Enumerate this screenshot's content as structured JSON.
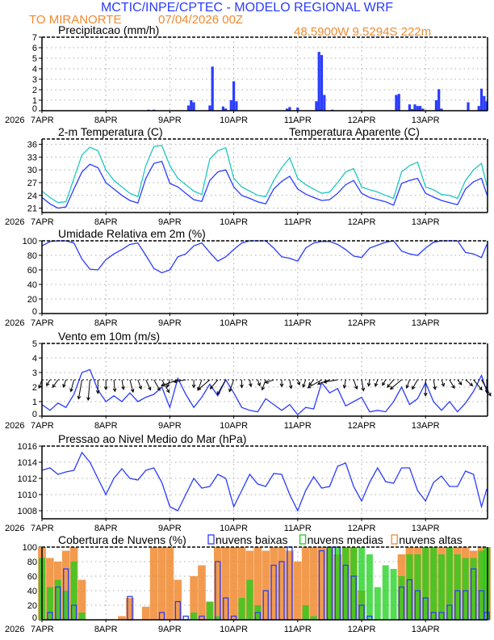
{
  "header": {
    "title": "MCTIC/INPE/CPTEC - MODELO REGIONAL WRF",
    "location": "TO MIRANORTE",
    "run": "07/04/2026 00Z",
    "coords": "48.5900W 9.5294S 222m"
  },
  "colors": {
    "title": "#2a3cff",
    "orange": "#f08a30",
    "blue": "#2a3cff",
    "cyan": "#20c8c0",
    "green": "#18d018"
  },
  "x_axis": {
    "labels": [
      "7APR",
      "8APR",
      "9APR",
      "10APR",
      "11APR",
      "12APR",
      "13APR"
    ],
    "year": "2026",
    "time_step_hours": 3,
    "last_hour": 167
  },
  "chart_data": [
    {
      "id": "precip",
      "type": "bar",
      "title": "Precipitacao (mm/h)",
      "ylim": [
        0,
        7
      ],
      "yticks": [
        0,
        1,
        2,
        3,
        4,
        5,
        6,
        7
      ],
      "grid": true,
      "bars_hour_value": [
        [
          40,
          0.1
        ],
        [
          42,
          0.1
        ],
        [
          55,
          0.5
        ],
        [
          56,
          1.0
        ],
        [
          57,
          0.8
        ],
        [
          63,
          0.5
        ],
        [
          64,
          4.2
        ],
        [
          68,
          0.4
        ],
        [
          69,
          0.2
        ],
        [
          71,
          1.0
        ],
        [
          72,
          2.8
        ],
        [
          73,
          0.9
        ],
        [
          92,
          0.2
        ],
        [
          93,
          0.35
        ],
        [
          96,
          0.3
        ],
        [
          103,
          0.9
        ],
        [
          104,
          5.6
        ],
        [
          105,
          5.3
        ],
        [
          106,
          1.5
        ],
        [
          109,
          0.1
        ],
        [
          133,
          1.5
        ],
        [
          134,
          1.6
        ],
        [
          138,
          0.6
        ],
        [
          139,
          0.15
        ],
        [
          140,
          0.6
        ],
        [
          141,
          0.45
        ],
        [
          142,
          0.45
        ],
        [
          143,
          0.2
        ],
        [
          148,
          1.0
        ],
        [
          149,
          2.05
        ],
        [
          150,
          0.2
        ],
        [
          160,
          0.8
        ],
        [
          164,
          0.45
        ],
        [
          165,
          2.1
        ],
        [
          166,
          1.4
        ],
        [
          167,
          0.9
        ]
      ]
    },
    {
      "id": "temp",
      "type": "line",
      "title": "2-m Temperatura (C)",
      "ylim": [
        21,
        36
      ],
      "yticks": [
        21,
        24,
        27,
        30,
        33,
        36
      ],
      "grid": true,
      "series": [
        {
          "name": "2-m Temperatura (C)",
          "values": [
            23.5,
            22.0,
            21.0,
            21.3,
            25.5,
            29.5,
            31.3,
            30.5,
            27.0,
            25.5,
            24.0,
            22.8,
            22.2,
            28.0,
            31.5,
            32.0,
            26.8,
            26.0,
            24.5,
            23.0,
            22.6,
            27.5,
            29.5,
            30.0,
            26.0,
            24.0,
            23.3,
            22.5,
            22.0,
            25.5,
            27.3,
            28.5,
            25.5,
            24.3,
            23.5,
            22.8,
            23.0,
            24.5,
            26.5,
            27.5,
            24.5,
            23.5,
            23.0,
            22.5,
            21.7,
            26.8,
            27.5,
            28.0,
            24.5,
            23.6,
            22.8,
            22.3,
            21.8,
            25.5,
            27.2,
            28.0,
            24.2
          ]
        },
        {
          "name": "Temperatura Aparente (C)",
          "values": [
            25.0,
            23.5,
            22.3,
            22.5,
            28.0,
            33.5,
            35.3,
            34.5,
            30.0,
            27.5,
            26.0,
            24.5,
            23.7,
            31.0,
            35.5,
            35.7,
            31.0,
            28.0,
            26.5,
            25.0,
            24.2,
            32.5,
            34.5,
            35.2,
            28.0,
            26.0,
            25.0,
            24.0,
            23.7,
            27.5,
            30.5,
            32.8,
            28.0,
            26.5,
            25.5,
            24.5,
            24.8,
            27.0,
            29.5,
            30.3,
            26.0,
            25.3,
            24.8,
            24.0,
            23.3,
            29.5,
            31.0,
            31.8,
            26.0,
            25.3,
            24.2,
            24.0,
            23.3,
            27.5,
            30.0,
            31.5,
            26.3
          ]
        }
      ]
    },
    {
      "id": "rh",
      "type": "line",
      "title": "Umidade Relativa em 2m (%)",
      "ylim": [
        0,
        100
      ],
      "yticks": [
        0,
        20,
        40,
        60,
        80,
        100
      ],
      "grid": true,
      "series": [
        {
          "values": [
            93,
            99,
            100,
            100,
            97,
            75,
            61,
            60,
            74,
            82,
            88,
            95,
            97,
            80,
            62,
            56,
            60,
            78,
            82,
            93,
            97,
            84,
            72,
            78,
            88,
            97,
            100,
            100,
            100,
            90,
            78,
            76,
            72,
            90,
            97,
            99,
            99,
            95,
            88,
            79,
            77,
            90,
            94,
            98,
            100,
            86,
            82,
            80,
            90,
            98,
            100,
            100,
            100,
            84,
            82,
            77,
            95
          ]
        }
      ]
    },
    {
      "id": "wind",
      "type": "line",
      "title": "Vento em 10m (m/s)",
      "ylim": [
        0,
        5
      ],
      "yticks": [
        0,
        1,
        2,
        3,
        4,
        5
      ],
      "grid": true,
      "series": [
        {
          "values": [
            0.8,
            0.4,
            0.9,
            0.6,
            1.5,
            3.0,
            3.2,
            1.8,
            1.0,
            1.4,
            1.0,
            1.6,
            1.0,
            1.3,
            1.5,
            2.0,
            0.6,
            2.6,
            1.5,
            0.6,
            1.3,
            2.2,
            1.4,
            2.5,
            1.6,
            0.6,
            0.4,
            0.3,
            1.2,
            0.8,
            0.4,
            0.8,
            0.1,
            0.6,
            0.5,
            2.3,
            1.6,
            1.9,
            0.7,
            1.0,
            1.3,
            0.3,
            0.4,
            0.3,
            1.0,
            2.0,
            0.8,
            1.2,
            2.3,
            1.0,
            0.4,
            1.0,
            0.3,
            0.9,
            1.7,
            2.8,
            1.7
          ]
        }
      ],
      "vector_direction_deg": [
        200,
        210,
        215,
        200,
        195,
        190,
        185,
        180,
        180,
        175,
        170,
        165,
        160,
        155,
        150,
        150,
        200,
        250,
        260,
        180,
        200,
        230,
        220,
        210,
        200,
        180,
        170,
        160,
        200,
        250,
        180,
        170,
        160,
        200,
        220,
        240,
        250,
        260,
        190,
        160,
        170,
        190,
        200,
        210,
        220,
        230,
        200,
        210,
        180,
        170,
        160,
        150,
        140,
        130,
        140,
        150,
        180
      ]
    },
    {
      "id": "pressure",
      "type": "line",
      "title": "Pressao ao Nivel Medio do Mar (hPa)",
      "ylim": [
        1007,
        1016
      ],
      "yticks": [
        1008,
        1010,
        1012,
        1014,
        1016
      ],
      "grid": true,
      "series": [
        {
          "values": [
            1013,
            1013.3,
            1012.5,
            1012.8,
            1013,
            1015.2,
            1014,
            1012,
            1010,
            1012,
            1013.2,
            1012,
            1011.8,
            1013,
            1013.3,
            1011.5,
            1008.5,
            1008,
            1010,
            1012,
            1010.8,
            1011,
            1012.5,
            1012,
            1008.5,
            1010.5,
            1012.5,
            1011.3,
            1011,
            1012.6,
            1012.5,
            1010,
            1008,
            1010.5,
            1012.2,
            1010.8,
            1011,
            1013.5,
            1013.9,
            1011,
            1009.2,
            1011.5,
            1013.3,
            1011.6,
            1011.4,
            1013.3,
            1013.3,
            1010.5,
            1009.2,
            1011.5,
            1012.3,
            1011,
            1011,
            1012.9,
            1012.5,
            1008.5,
            1010.7
          ]
        }
      ]
    },
    {
      "id": "clouds",
      "type": "bar",
      "title": "Cobertura de Nuvens (%)",
      "ylim": [
        0,
        100
      ],
      "yticks": [
        0,
        20,
        40,
        60,
        80,
        100
      ],
      "grid": true,
      "series": [
        {
          "name": "nuvens altas",
          "values": [
            100,
            85,
            80,
            95,
            100,
            55,
            0,
            0,
            0,
            0,
            5,
            30,
            0,
            18,
            100,
            100,
            100,
            55,
            0,
            60,
            75,
            25,
            100,
            100,
            100,
            100,
            95,
            100,
            95,
            100,
            100,
            95,
            80,
            100,
            100,
            100,
            100,
            90,
            100,
            100,
            40,
            0,
            0,
            0,
            0,
            90,
            100,
            100,
            100,
            100,
            100,
            100,
            100,
            100,
            95,
            100,
            100
          ]
        },
        {
          "name": "nuvens medias",
          "values": [
            85,
            45,
            55,
            40,
            80,
            10,
            0,
            0,
            0,
            0,
            0,
            0,
            0,
            0,
            0,
            0,
            0,
            0,
            0,
            10,
            0,
            25,
            5,
            0,
            0,
            30,
            55,
            20,
            0,
            0,
            0,
            0,
            0,
            20,
            5,
            0,
            100,
            100,
            100,
            100,
            100,
            90,
            45,
            75,
            70,
            60,
            90,
            90,
            100,
            100,
            90,
            100,
            90,
            85,
            85,
            95,
            100
          ]
        },
        {
          "name": "nuvens baixas",
          "values": [
            0,
            10,
            45,
            70,
            20,
            0,
            0,
            0,
            0,
            0,
            0,
            32,
            0,
            0,
            0,
            10,
            0,
            25,
            5,
            0,
            5,
            0,
            80,
            30,
            5,
            0,
            0,
            10,
            40,
            75,
            80,
            100,
            0,
            0,
            0,
            95,
            100,
            100,
            75,
            60,
            20,
            5,
            0,
            0,
            0,
            45,
            55,
            40,
            30,
            10,
            10,
            20,
            40,
            40,
            70,
            40,
            10
          ]
        }
      ]
    }
  ]
}
